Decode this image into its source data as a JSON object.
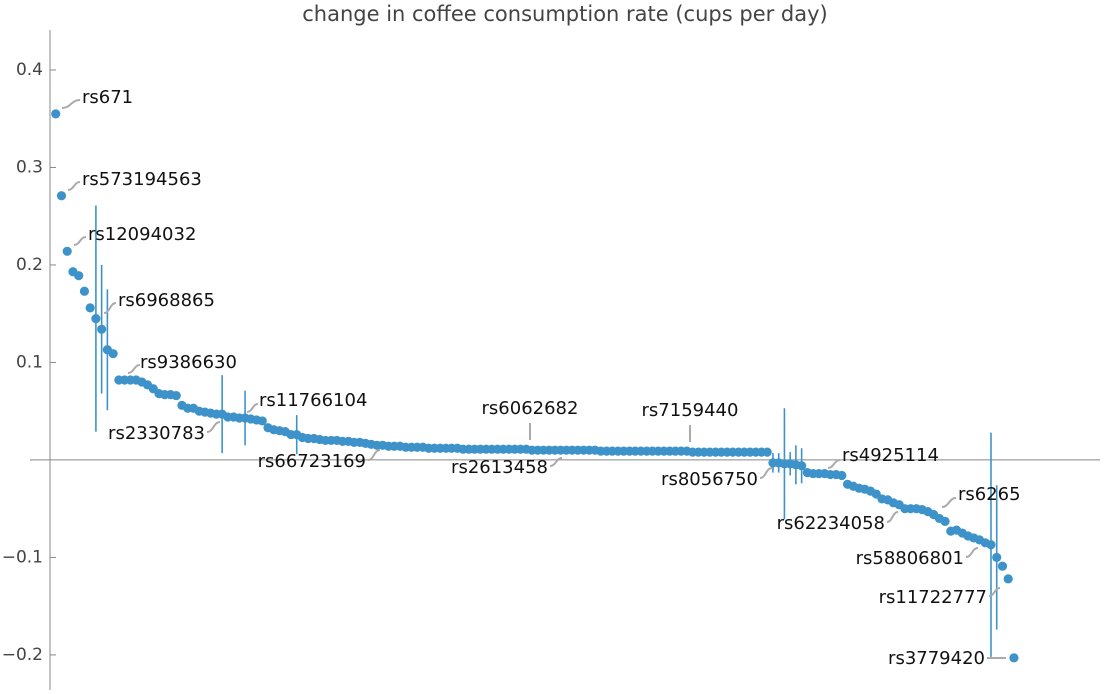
{
  "chart_data": {
    "type": "scatter",
    "title": "change in coffee consumption rate (cups per day)",
    "color": "#3d93c9",
    "xlim": [
      0,
      183
    ],
    "ylim": [
      -0.236,
      0.441
    ],
    "yticks": [
      {
        "value": -0.2,
        "label": "−0.2"
      },
      {
        "value": -0.1,
        "label": "−0.1"
      },
      0.1,
      0.2,
      0.3,
      0.4
    ],
    "x": [
      1,
      2,
      3,
      4,
      5,
      6,
      7,
      8,
      9,
      10,
      11,
      12,
      13,
      14,
      15,
      16,
      17,
      18,
      19,
      20,
      21,
      22,
      23,
      24,
      25,
      26,
      27,
      28,
      29,
      30,
      31,
      32,
      33,
      34,
      35,
      36,
      37,
      38,
      39,
      40,
      41,
      42,
      43,
      44,
      45,
      46,
      47,
      48,
      49,
      50,
      51,
      52,
      53,
      54,
      55,
      56,
      57,
      58,
      59,
      60,
      61,
      62,
      63,
      64,
      65,
      66,
      67,
      68,
      69,
      70,
      71,
      72,
      73,
      74,
      75,
      76,
      77,
      78,
      79,
      80,
      81,
      82,
      83,
      84,
      85,
      86,
      87,
      88,
      89,
      90,
      91,
      92,
      93,
      94,
      95,
      96,
      97,
      98,
      99,
      100,
      101,
      102,
      103,
      104,
      105,
      106,
      107,
      108,
      109,
      110,
      111,
      112,
      113,
      114,
      115,
      116,
      117,
      118,
      119,
      120,
      121,
      122,
      123,
      124,
      125,
      126,
      127,
      128,
      129,
      130,
      131,
      132,
      133,
      134,
      135,
      136,
      137,
      138,
      139,
      140,
      141,
      142,
      143,
      144,
      145,
      146,
      147,
      148,
      149,
      150,
      151,
      152,
      153,
      154,
      155,
      156,
      157,
      158,
      159,
      160,
      161,
      162,
      163,
      164,
      165,
      166,
      167,
      168
    ],
    "values": [
      0.355,
      0.271,
      0.214,
      0.193,
      0.189,
      0.173,
      0.156,
      0.145,
      0.134,
      0.113,
      0.109,
      0.082,
      0.082,
      0.082,
      0.082,
      0.08,
      0.077,
      0.073,
      0.068,
      0.067,
      0.067,
      0.066,
      0.056,
      0.053,
      0.053,
      0.05,
      0.049,
      0.048,
      0.047,
      0.047,
      0.044,
      0.044,
      0.043,
      0.043,
      0.042,
      0.041,
      0.04,
      0.033,
      0.031,
      0.03,
      0.029,
      0.026,
      0.026,
      0.023,
      0.022,
      0.022,
      0.021,
      0.02,
      0.02,
      0.02,
      0.019,
      0.019,
      0.018,
      0.018,
      0.017,
      0.016,
      0.015,
      0.015,
      0.014,
      0.014,
      0.014,
      0.013,
      0.013,
      0.013,
      0.013,
      0.012,
      0.012,
      0.012,
      0.012,
      0.012,
      0.012,
      0.011,
      0.011,
      0.011,
      0.011,
      0.011,
      0.011,
      0.011,
      0.011,
      0.011,
      0.011,
      0.011,
      0.011,
      0.01,
      0.01,
      0.01,
      0.01,
      0.01,
      0.01,
      0.01,
      0.01,
      0.01,
      0.01,
      0.01,
      0.01,
      0.009,
      0.009,
      0.009,
      0.009,
      0.009,
      0.009,
      0.009,
      0.009,
      0.009,
      0.009,
      0.009,
      0.009,
      0.009,
      0.009,
      0.009,
      0.009,
      0.008,
      0.008,
      0.008,
      0.008,
      0.008,
      0.008,
      0.008,
      0.008,
      0.008,
      0.008,
      0.008,
      0.008,
      0.008,
      0.008,
      -0.003,
      -0.003,
      -0.004,
      -0.004,
      -0.005,
      -0.006,
      -0.013,
      -0.014,
      -0.014,
      -0.014,
      -0.015,
      -0.015,
      -0.016,
      -0.025,
      -0.027,
      -0.029,
      -0.03,
      -0.032,
      -0.035,
      -0.04,
      -0.041,
      -0.044,
      -0.046,
      -0.05,
      -0.05,
      -0.05,
      -0.051,
      -0.053,
      -0.056,
      -0.06,
      -0.063,
      -0.073,
      -0.072,
      -0.075,
      -0.078,
      -0.08,
      -0.082,
      -0.085,
      -0.087,
      -0.1,
      -0.109,
      -0.122,
      -0.203
    ],
    "errors": [
      null,
      null,
      null,
      null,
      null,
      null,
      null,
      0.116,
      0.066,
      0.062,
      null,
      null,
      null,
      null,
      null,
      null,
      null,
      null,
      null,
      null,
      null,
      null,
      null,
      null,
      null,
      null,
      null,
      null,
      null,
      0.04,
      null,
      null,
      null,
      0.028,
      null,
      null,
      null,
      null,
      null,
      null,
      null,
      null,
      0.02,
      null,
      null,
      null,
      null,
      null,
      null,
      null,
      null,
      null,
      null,
      null,
      null,
      null,
      null,
      null,
      null,
      null,
      null,
      null,
      null,
      null,
      null,
      null,
      null,
      null,
      null,
      null,
      null,
      null,
      null,
      null,
      null,
      null,
      null,
      null,
      null,
      null,
      null,
      null,
      null,
      null,
      null,
      null,
      null,
      null,
      null,
      null,
      null,
      null,
      null,
      null,
      null,
      null,
      null,
      null,
      null,
      null,
      null,
      null,
      null,
      null,
      null,
      null,
      null,
      null,
      null,
      null,
      null,
      null,
      null,
      null,
      null,
      null,
      null,
      null,
      null,
      null,
      null,
      null,
      null,
      null,
      null,
      0.01,
      0.01,
      0.057,
      0.012,
      0.02,
      0.018,
      null,
      null,
      null,
      null,
      null,
      null,
      null,
      null,
      null,
      null,
      null,
      null,
      null,
      null,
      null,
      null,
      null,
      null,
      null,
      null,
      null,
      null,
      null,
      null,
      null,
      null,
      null,
      null,
      null,
      null,
      null,
      null,
      0.115,
      0.074,
      null,
      null,
      null
    ],
    "point_labels": [
      "rs671",
      "rs573194563",
      "rs12094032",
      null,
      null,
      null,
      null,
      null,
      "rs6968865",
      null,
      null,
      null,
      null,
      null,
      null,
      null,
      null,
      null,
      "rs9386630",
      null,
      null,
      null,
      null,
      null,
      null,
      null,
      null,
      null,
      null,
      "rs2330783",
      null,
      null,
      null,
      "rs11766104",
      null,
      null,
      null,
      null,
      null,
      null,
      null,
      null,
      null,
      null,
      null,
      null,
      null,
      null,
      null,
      null,
      null,
      null,
      null,
      null,
      null,
      null,
      null,
      "rs66723169",
      null,
      null,
      null,
      null,
      null,
      null,
      null,
      null,
      null,
      null,
      null,
      null,
      null,
      null,
      null,
      null,
      null,
      null,
      null,
      null,
      null,
      null,
      null,
      null,
      null,
      "rs6062682",
      null,
      null,
      null,
      null,
      null,
      "rs2613458",
      null,
      null,
      null,
      null,
      null,
      null,
      null,
      null,
      null,
      null,
      null,
      null,
      null,
      null,
      null,
      null,
      null,
      null,
      null,
      null,
      null,
      "rs7159440",
      null,
      null,
      null,
      null,
      null,
      null,
      null,
      null,
      null,
      null,
      null,
      null,
      null,
      "rs8056750",
      null,
      null,
      null,
      null,
      null,
      null,
      null,
      null,
      null,
      "rs4925114",
      null,
      null,
      null,
      null,
      null,
      null,
      null,
      null,
      null,
      null,
      null,
      null,
      "rs62234058",
      null,
      null,
      null,
      null,
      null,
      "rs6265",
      null,
      null,
      null,
      null,
      null,
      null,
      "rs58806801",
      null,
      null,
      "rs11722777",
      null,
      null,
      "rs3779420"
    ]
  }
}
